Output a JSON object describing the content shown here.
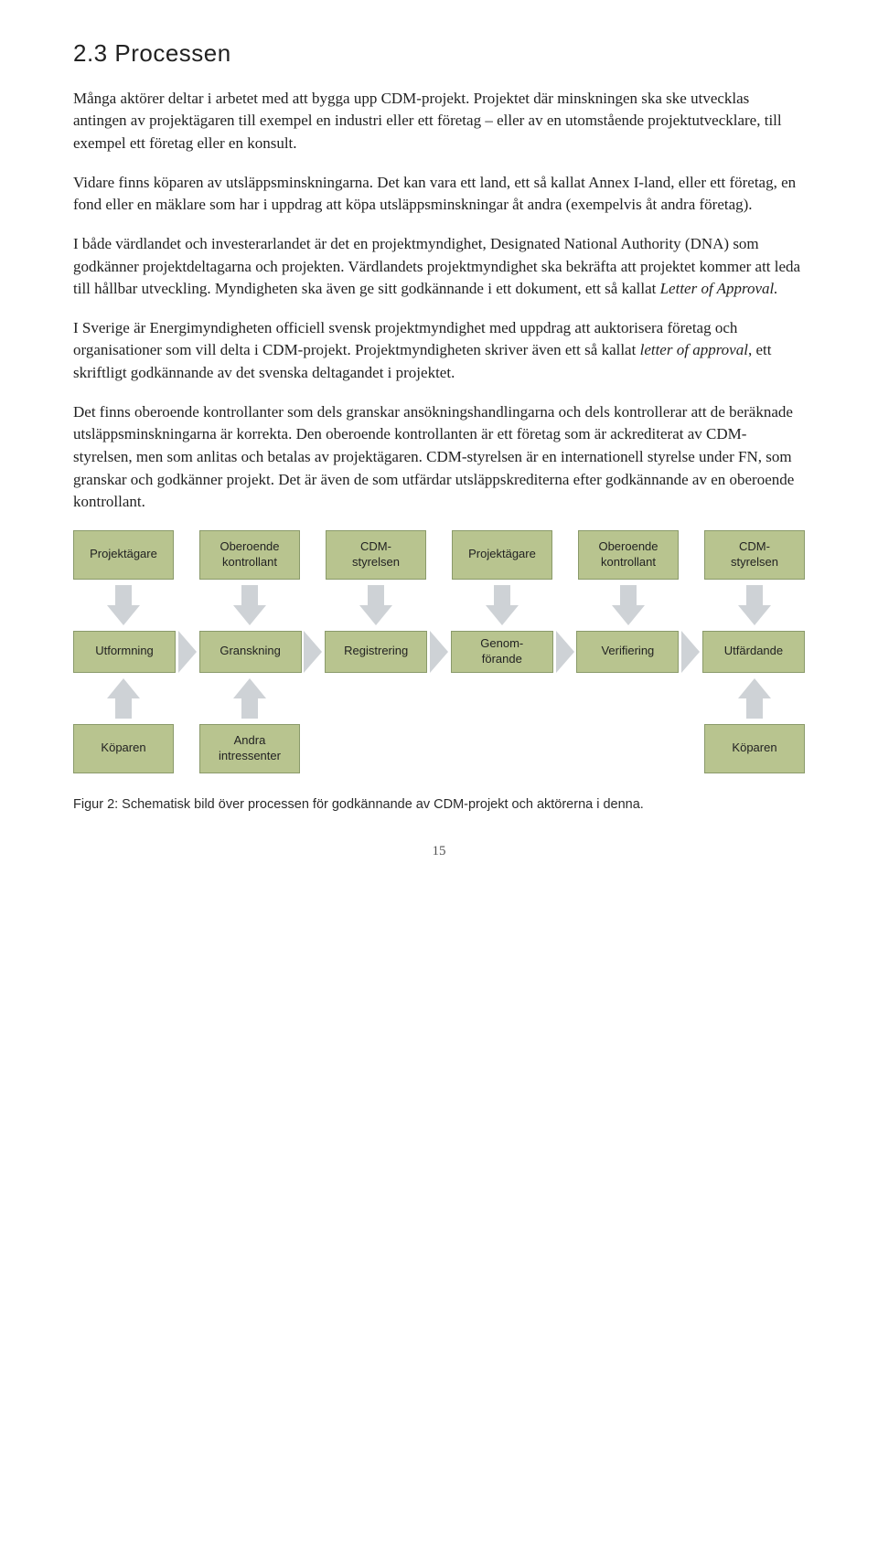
{
  "heading": "2.3 Processen",
  "paragraphs": {
    "p1": "Många aktörer deltar i arbetet med att bygga upp CDM-projekt. Projektet där minskningen ska ske utvecklas antingen av projektägaren till exempel en industri eller ett företag – eller av en utomstående projektutvecklare, till exempel ett företag eller en konsult.",
    "p2": "Vidare finns köparen av utsläppsminskningarna. Det kan vara ett land, ett så kallat Annex I-land, eller ett företag, en fond eller en mäklare som har i uppdrag att köpa utsläppsminskningar åt andra (exempelvis åt andra företag).",
    "p3a": "I både värdlandet och investerarlandet är det en projektmyndighet, Designated National Authority (DNA) som godkänner projektdeltagarna och projekten. Värdlandets projektmyndighet ska bekräfta att projektet kommer att leda till hållbar utveckling. Myndigheten ska även ge sitt godkännande i ett dokument, ett så kallat ",
    "p3b": "Letter of Approval.",
    "p4a": "I Sverige är Energimyndigheten officiell svensk projektmyndighet med uppdrag att auktorisera företag och organisationer som vill delta i CDM-projekt. Projektmyndigheten skriver även ett så kallat ",
    "p4b": "letter of approval",
    "p4c": ", ett skriftligt godkännande av det svenska deltagandet i projektet.",
    "p5": "Det finns oberoende kontrollanter som dels granskar ansökningshandlingarna och dels kontrollerar att de beräknade utsläppsminskningarna är korrekta. Den oberoende kontrollanten är ett företag som är ackrediterat av CDM-styrelsen, men som anlitas och betalas av projektägaren. CDM-styrelsen är en internationell styrelse under FN, som granskar och godkänner projekt. Det är även de som utfärdar utsläppskrediterna efter godkännande av en oberoende kontrollant."
  },
  "diagram": {
    "colors": {
      "box_fill": "#b8c48f",
      "box_border": "#8a9a6a",
      "arrow_fill": "#ced2d6"
    },
    "top_row": [
      "Projektägare",
      "Oberoende kontrollant",
      "CDM-styrelsen",
      "Projektägare",
      "Oberoende kontrollant",
      "CDM-styrelsen"
    ],
    "mid_row": [
      "Utformning",
      "Granskning",
      "Registrering",
      "Genom-förande",
      "Verifiering",
      "Utfärdande"
    ],
    "bottom_row": {
      "b0": "Köparen",
      "b1": "Andra intressenter",
      "b5": "Köparen"
    }
  },
  "caption": "Figur 2: Schematisk bild över processen för godkännande av CDM-projekt och aktörerna i denna.",
  "page_number": "15"
}
